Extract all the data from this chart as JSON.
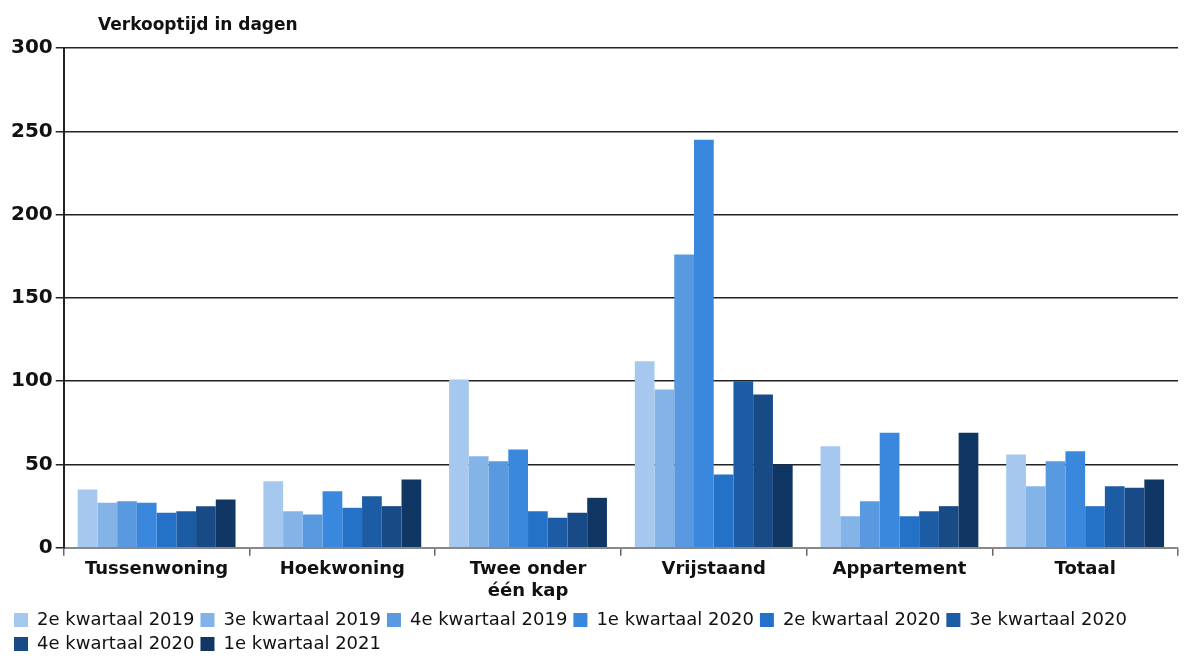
{
  "chart_data": {
    "type": "bar",
    "ylabel": "Verkooptijd in dagen",
    "categories": [
      "Tussenwoning",
      "Hoekwoning",
      "Twee onder één kap",
      "Vrijstaand",
      "Appartement",
      "Totaal"
    ],
    "series": [
      {
        "name": "2e kwartaal 2019",
        "color": "#a6c8ee",
        "values": [
          35,
          40,
          101,
          112,
          61,
          56
        ]
      },
      {
        "name": "3e kwartaal 2019",
        "color": "#84b3e8",
        "values": [
          27,
          22,
          55,
          95,
          19,
          37
        ]
      },
      {
        "name": "4e kwartaal 2019",
        "color": "#5899e0",
        "values": [
          28,
          20,
          52,
          176,
          28,
          52
        ]
      },
      {
        "name": "1e kwartaal 2020",
        "color": "#3a88de",
        "values": [
          27,
          34,
          59,
          245,
          69,
          58
        ]
      },
      {
        "name": "2e kwartaal 2020",
        "color": "#2372c8",
        "values": [
          21,
          24,
          22,
          44,
          19,
          25
        ]
      },
      {
        "name": "3e kwartaal 2020",
        "color": "#1c5ca5",
        "values": [
          22,
          31,
          18,
          100,
          22,
          37
        ]
      },
      {
        "name": "4e kwartaal 2020",
        "color": "#184a85",
        "values": [
          25,
          25,
          21,
          92,
          25,
          36
        ]
      },
      {
        "name": "1e kwartaal 2021",
        "color": "#103764",
        "values": [
          29,
          41,
          30,
          50,
          69,
          41
        ]
      }
    ],
    "ylim": [
      0,
      300
    ],
    "yticks": [
      0,
      50,
      100,
      150,
      200,
      250,
      300
    ],
    "grid": "y",
    "legend": "bottom"
  }
}
